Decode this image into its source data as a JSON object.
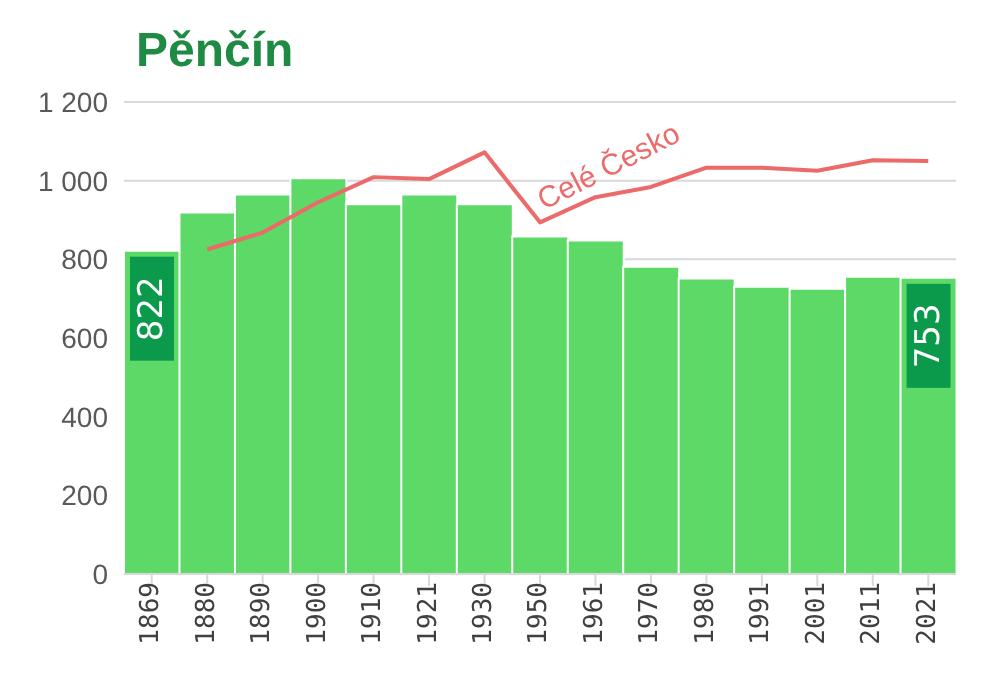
{
  "chart_data": {
    "type": "bar",
    "title": "Pěnčín",
    "categories": [
      "1869",
      "1880",
      "1890",
      "1900",
      "1910",
      "1921",
      "1930",
      "1950",
      "1961",
      "1970",
      "1980",
      "1991",
      "2001",
      "2011",
      "2021"
    ],
    "series": [
      {
        "color": "#5cd966",
        "values": [
          822,
          919,
          965,
          1006,
          940,
          965,
          940,
          858,
          848,
          781,
          751,
          730,
          725,
          756,
          753
        ],
        "value_labels": [
          "822",
          null,
          null,
          null,
          null,
          null,
          null,
          null,
          null,
          null,
          null,
          null,
          null,
          null,
          "753"
        ]
      },
      {
        "type": "line",
        "name": "Celé Česko",
        "color": "#ec6a6a",
        "values": [
          null,
          825,
          868,
          945,
          1009,
          1004,
          1072,
          894,
          958,
          984,
          1033,
          1033,
          1025,
          1052,
          1050
        ]
      }
    ],
    "ylim": [
      0,
      1200
    ],
    "yticks": [
      0,
      200,
      400,
      600,
      800,
      {
        "value": 1000,
        "label": "1 000"
      },
      {
        "value": 1200,
        "label": "1 200"
      }
    ],
    "grid": "y",
    "legend": false
  }
}
